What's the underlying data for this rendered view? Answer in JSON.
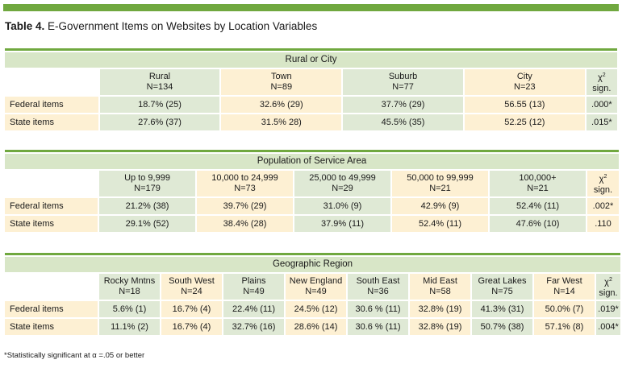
{
  "title": {
    "bold": "Table 4.",
    "rest": " E-Government Items on Websites by Location Variables"
  },
  "sections": [
    {
      "banner": "Rural or City",
      "columns": [
        {
          "name": "Rural",
          "n": "N=134"
        },
        {
          "name": "Town",
          "n": "N=89"
        },
        {
          "name": "Suburb",
          "n": "N=77"
        },
        {
          "name": "City",
          "n": "N=23"
        }
      ],
      "chi": {
        "symbol": "χ",
        "sup": "2",
        "label": "sign."
      },
      "rows": [
        {
          "label": "Federal items",
          "values": [
            "18.7% (25)",
            "32.6% (29)",
            "37.7% (29)",
            "56.55 (13)"
          ],
          "sig": ".000*"
        },
        {
          "label": "State items",
          "values": [
            "27.6% (37)",
            "31.5% 28)",
            "45.5% (35)",
            "52.25 (12)"
          ],
          "sig": ".015*"
        }
      ]
    },
    {
      "banner": "Population of Service Area",
      "columns": [
        {
          "name": "Up to 9,999",
          "n": "N=179"
        },
        {
          "name": "10,000 to 24,999",
          "n": "N=73"
        },
        {
          "name": "25,000 to 49,999",
          "n": "N=29"
        },
        {
          "name": "50,000 to 99,999",
          "n": "N=21"
        },
        {
          "name": "100,000+",
          "n": "N=21"
        }
      ],
      "chi": {
        "symbol": "χ",
        "sup": "2",
        "label": "sign."
      },
      "rows": [
        {
          "label": "Federal items",
          "values": [
            "21.2% (38)",
            "39.7% (29)",
            "31.0% (9)",
            "42.9% (9)",
            "52.4% (11)"
          ],
          "sig": ".002*"
        },
        {
          "label": "State items",
          "values": [
            "29.1% (52)",
            "38.4% (28)",
            "37.9% (11)",
            "52.4% (11)",
            "47.6% (10)"
          ],
          "sig": ".110"
        }
      ]
    },
    {
      "banner": "Geographic Region",
      "columns": [
        {
          "name": "Rocky Mntns",
          "n": "N=18"
        },
        {
          "name": "South West",
          "n": "N=24"
        },
        {
          "name": "Plains",
          "n": "N=49"
        },
        {
          "name": "New England",
          "n": "N=49"
        },
        {
          "name": "South East",
          "n": "N=36"
        },
        {
          "name": "Mid East",
          "n": "N=58"
        },
        {
          "name": "Great Lakes",
          "n": "N=75"
        },
        {
          "name": "Far West",
          "n": "N=14"
        }
      ],
      "chi": {
        "symbol": "χ",
        "sup": "2",
        "label": "sign."
      },
      "rows": [
        {
          "label": "Federal items",
          "values": [
            "5.6% (1)",
            "16.7% (4)",
            "22.4% (11)",
            "24.5% (12)",
            "30.6 % (11)",
            "32.8% (19)",
            "41.3% (31)",
            "50.0% (7)"
          ],
          "sig": ".019*"
        },
        {
          "label": "State items",
          "values": [
            "11.1% (2)",
            "16.7% (4)",
            "32.7% (16)",
            "28.6% (14)",
            "30.6 % (11)",
            "32.8% (19)",
            "50.7% (38)",
            "57.1% (8)"
          ],
          "sig": ".004*"
        }
      ]
    }
  ],
  "footnote": "*Statistically significant at α =.05 or better"
}
